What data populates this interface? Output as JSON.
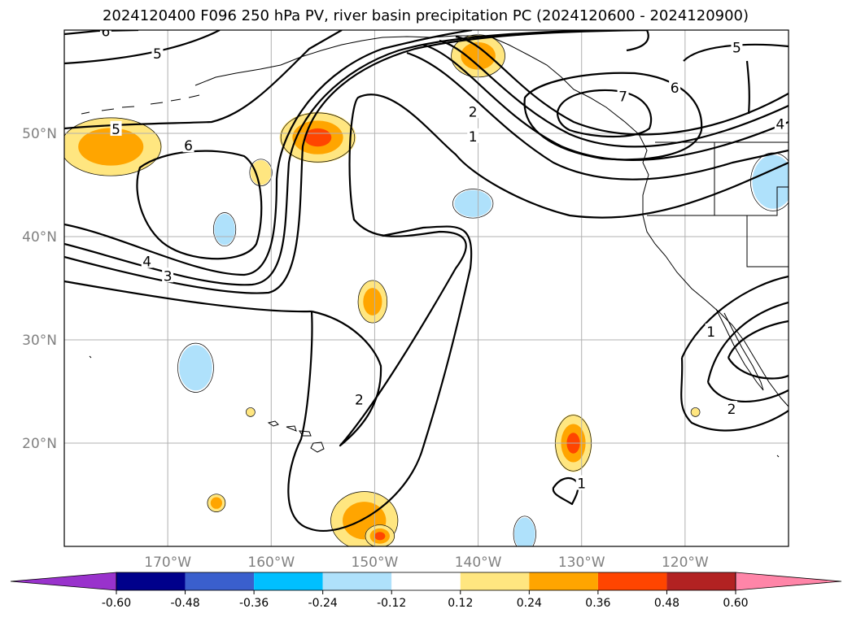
{
  "chart_data": {
    "type": "contour",
    "title": "2024120400 F096 250 hPa PV, river basin precipitation PC (2024120600 - 2024120900)",
    "map": {
      "lon_range": [
        -180,
        -110
      ],
      "lat_range": [
        10,
        60
      ],
      "lon_ticks": [
        {
          "value": -170,
          "label": "170°W"
        },
        {
          "value": -160,
          "label": "160°W"
        },
        {
          "value": -150,
          "label": "150°W"
        },
        {
          "value": -140,
          "label": "140°W"
        },
        {
          "value": -130,
          "label": "130°W"
        },
        {
          "value": -120,
          "label": "120°W"
        }
      ],
      "lat_ticks": [
        {
          "value": 50,
          "label": "50°N"
        },
        {
          "value": 40,
          "label": "40°N"
        },
        {
          "value": 30,
          "label": "30°N"
        },
        {
          "value": 20,
          "label": "20°N"
        }
      ],
      "grid": true
    },
    "contour_labels": [
      {
        "text": "6",
        "lon": -176,
        "lat": 59.9
      },
      {
        "text": "5",
        "lon": -171,
        "lat": 57.7
      },
      {
        "text": "5",
        "lon": -175,
        "lat": 50.4
      },
      {
        "text": "6",
        "lon": -168,
        "lat": 48.8
      },
      {
        "text": "4",
        "lon": -172,
        "lat": 37.6
      },
      {
        "text": "3",
        "lon": -170,
        "lat": 36.2
      },
      {
        "text": "2",
        "lon": -140.5,
        "lat": 52.1
      },
      {
        "text": "1",
        "lon": -140.5,
        "lat": 49.7
      },
      {
        "text": "5",
        "lon": -115,
        "lat": 58.3
      },
      {
        "text": "6",
        "lon": -121,
        "lat": 54.4
      },
      {
        "text": "7",
        "lon": -126,
        "lat": 53.6
      },
      {
        "text": "4",
        "lon": -110.8,
        "lat": 50.9
      },
      {
        "text": "2",
        "lon": -151.5,
        "lat": 24.2
      },
      {
        "text": "1",
        "lon": -130,
        "lat": 16.1
      },
      {
        "text": "1",
        "lon": -117.5,
        "lat": 30.8
      },
      {
        "text": "2",
        "lon": -115.5,
        "lat": 23.3
      }
    ],
    "precip_blobs": [
      {
        "lon": -175.5,
        "lat": 48.7,
        "rx": 4.5,
        "ry": 2.6,
        "level": 0.24
      },
      {
        "lon": -155.5,
        "lat": 49.6,
        "rx": 3.3,
        "ry": 2.2,
        "level": 0.36
      },
      {
        "lon": -140,
        "lat": 57.5,
        "rx": 2.4,
        "ry": 1.9,
        "level": 0.24
      },
      {
        "lon": -161,
        "lat": 46.2,
        "rx": 1.0,
        "ry": 1.2,
        "level": 0.12
      },
      {
        "lon": -150.2,
        "lat": 33.7,
        "rx": 1.3,
        "ry": 1.9,
        "level": 0.24
      },
      {
        "lon": -130.8,
        "lat": 20.0,
        "rx": 1.6,
        "ry": 2.5,
        "level": 0.36
      },
      {
        "lon": -165.3,
        "lat": 14.2,
        "rx": 0.8,
        "ry": 0.8,
        "level": 0.24
      },
      {
        "lon": -162,
        "lat": 23.0,
        "rx": 0.4,
        "ry": 0.4,
        "level": 0.12
      },
      {
        "lon": -119,
        "lat": 23.0,
        "rx": 0.4,
        "ry": 0.4,
        "level": 0.12
      },
      {
        "lon": -151,
        "lat": 12.5,
        "rx": 3.0,
        "ry": 2.6,
        "level": 0.24
      },
      {
        "lon": -149.5,
        "lat": 11.0,
        "rx": 1.3,
        "ry": 1.0,
        "level": 0.36
      },
      {
        "lon": -164.5,
        "lat": 40.7,
        "rx": 1.0,
        "ry": 1.5,
        "level": -0.24
      },
      {
        "lon": -167.3,
        "lat": 27.3,
        "rx": 1.6,
        "ry": 2.2,
        "level": -0.24
      },
      {
        "lon": -140.5,
        "lat": 43.2,
        "rx": 1.8,
        "ry": 1.3,
        "level": -0.24
      },
      {
        "lon": -135.5,
        "lat": 11.2,
        "rx": 1.0,
        "ry": 1.6,
        "level": -0.24
      },
      {
        "lon": -111.5,
        "lat": 45.3,
        "rx": 2.0,
        "ry": 2.6,
        "level": -0.24
      }
    ],
    "colorbar": {
      "ticks": [
        "-0.60",
        "-0.48",
        "-0.36",
        "-0.24",
        "-0.12",
        "0.12",
        "0.24",
        "0.36",
        "0.48",
        "0.60"
      ],
      "colors": [
        "#9932cc",
        "#00008b",
        "#3a5fcd",
        "#00bfff",
        "#afe1fb",
        "#ffffff",
        "#ffe680",
        "#ffa500",
        "#ff4500",
        "#b22222",
        "#ff85a8"
      ],
      "extend": "both"
    }
  }
}
